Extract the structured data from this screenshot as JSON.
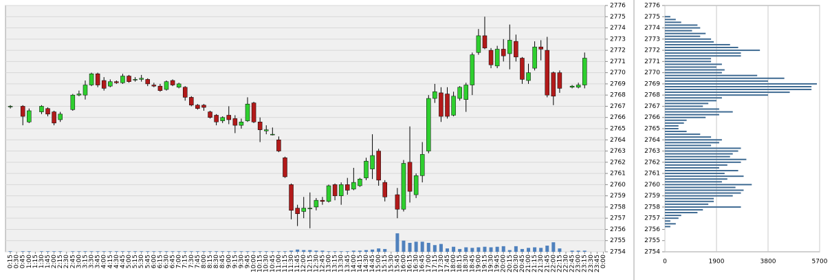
{
  "chart_data": [
    {
      "type": "candlestick",
      "categories": [
        "0:15",
        "0:30",
        "0:45",
        "1:00",
        "1:15",
        "1:30",
        "1:45",
        "2:00",
        "2:15",
        "2:30",
        "2:45",
        "3:00",
        "3:15",
        "3:30",
        "3:45",
        "4:00",
        "4:15",
        "4:30",
        "4:45",
        "5:00",
        "5:15",
        "5:30",
        "5:45",
        "6:00",
        "6:15",
        "6:30",
        "6:45",
        "7:00",
        "7:15",
        "7:30",
        "7:45",
        "8:00",
        "8:15",
        "8:30",
        "8:45",
        "9:00",
        "9:15",
        "9:30",
        "9:45",
        "10:00",
        "10:15",
        "10:30",
        "10:45",
        "11:00",
        "11:15",
        "11:30",
        "11:45",
        "12:00",
        "12:15",
        "12:30",
        "12:45",
        "13:00",
        "13:15",
        "13:30",
        "13:45",
        "14:00",
        "14:15",
        "14:30",
        "14:45",
        "15:00",
        "15:15",
        "15:30",
        "15:45",
        "16:00",
        "16:15",
        "16:30",
        "16:45",
        "17:00",
        "17:15",
        "17:30",
        "17:45",
        "18:00",
        "18:15",
        "18:30",
        "18:45",
        "19:00",
        "19:15",
        "19:30",
        "19:45",
        "20:00",
        "20:15",
        "20:30",
        "20:45",
        "21:00",
        "21:15",
        "21:30",
        "21:45",
        "22:00",
        "22:15",
        "22:30",
        "22:45",
        "23:00",
        "23:15",
        "23:30",
        "23:45",
        "0:00"
      ],
      "open": [
        2767.0,
        null,
        2767.0,
        2765.6,
        null,
        2766.5,
        2766.8,
        2766.5,
        2765.8,
        null,
        2766.7,
        2768.0,
        2768.0,
        2768.9,
        2769.9,
        2769.3,
        2768.8,
        2769.2,
        2769.1,
        2769.7,
        2769.4,
        2769.4,
        2769.4,
        2768.9,
        2768.8,
        2768.5,
        2769.3,
        2768.7,
        2768.7,
        2767.8,
        2767.1,
        2767.1,
        2766.5,
        2766.2,
        2765.7,
        2766.2,
        2765.9,
        2765.3,
        2765.7,
        2767.3,
        2765.6,
        2764.8,
        2764.5,
        2764.0,
        2762.4,
        2760.0,
        2757.9,
        2757.6,
        2757.9,
        2758.0,
        2758.6,
        2758.5,
        2760.0,
        2759.0,
        2760.0,
        2759.6,
        2759.9,
        2760.6,
        2761.4,
        2763.0,
        2760.2,
        null,
        2759.1,
        2757.8,
        2762.0,
        2759.1,
        2760.8,
        2763.0,
        2767.7,
        2768.2,
        2768.1,
        2766.2,
        2767.7,
        2767.6,
        2768.9,
        2771.8,
        2773.3,
        2772.0,
        2770.6,
        2772.1,
        2771.7,
        2772.8,
        2771.3,
        2769.3,
        2770.4,
        2772.3,
        2772.0,
        2770.0,
        2770.0,
        null,
        2768.7,
        2768.7,
        2768.9,
        null,
        null,
        null
      ],
      "high": [
        2767.1,
        null,
        2767.1,
        2766.8,
        null,
        2767.1,
        2766.9,
        2766.6,
        2766.5,
        null,
        2768.1,
        2768.4,
        2769.3,
        2770.0,
        2770.0,
        2769.6,
        2769.4,
        2769.3,
        2769.9,
        2769.8,
        2769.6,
        2769.8,
        2769.5,
        2769.1,
        2769.0,
        2769.3,
        2769.4,
        2769.1,
        2768.8,
        2767.9,
        2767.2,
        2767.2,
        2766.6,
        2766.3,
        2766.1,
        2767.0,
        2766.2,
        2765.9,
        2767.8,
        2767.4,
        2766.0,
        2765.3,
        2765.1,
        2764.3,
        2762.5,
        2760.1,
        2758.2,
        2758.9,
        2759.3,
        2758.8,
        2758.9,
        2760.0,
        2760.1,
        2760.2,
        2760.6,
        2761.5,
        2760.6,
        2762.4,
        2764.5,
        2763.2,
        2760.4,
        null,
        2759.7,
        2762.2,
        2765.2,
        2761.0,
        2763.8,
        2768.0,
        2769.0,
        2768.7,
        2768.7,
        2768.3,
        2768.8,
        2769.1,
        2771.8,
        2773.9,
        2775.0,
        2772.2,
        2772.4,
        2773.0,
        2774.3,
        2773.4,
        2771.4,
        2770.8,
        2772.8,
        2772.9,
        2773.2,
        2770.1,
        2770.2,
        null,
        2768.9,
        2769.1,
        2771.8,
        null,
        null,
        null
      ],
      "low": [
        2766.8,
        null,
        2765.3,
        2765.5,
        null,
        2766.3,
        2766.1,
        2765.3,
        2765.6,
        null,
        2766.6,
        2767.9,
        2767.6,
        2768.8,
        2768.7,
        2768.4,
        2768.7,
        2769.0,
        2769.0,
        2769.1,
        2769.2,
        2769.2,
        2768.8,
        2768.7,
        2768.3,
        2768.4,
        2768.8,
        2768.6,
        2767.5,
        2767.0,
        2766.7,
        2766.6,
        2765.9,
        2765.3,
        2765.5,
        2765.4,
        2764.6,
        2765.0,
        2765.6,
        2765.5,
        2763.8,
        2764.5,
        2764.4,
        2762.9,
        2760.6,
        2756.9,
        2756.3,
        2757.0,
        2756.1,
        2757.7,
        2758.2,
        2758.4,
        2758.6,
        2758.2,
        2759.1,
        2759.5,
        2759.8,
        2760.4,
        2760.5,
        2759.9,
        2758.5,
        null,
        2757.0,
        2757.6,
        2758.4,
        2758.8,
        2760.2,
        2762.8,
        2767.3,
        2765.6,
        2765.9,
        2766.1,
        2767.5,
        2766.5,
        2768.0,
        2771.6,
        2772.1,
        2770.4,
        2770.4,
        2771.0,
        2770.3,
        2771.0,
        2769.0,
        2769.0,
        2770.2,
        2771.1,
        2767.8,
        2767.1,
        2768.2,
        null,
        2768.6,
        2768.6,
        2768.6,
        null,
        null,
        null
      ],
      "close": [
        2767.0,
        null,
        2766.1,
        2766.6,
        null,
        2767.0,
        2766.3,
        2765.5,
        2766.3,
        null,
        2768.0,
        2768.1,
        2768.9,
        2769.9,
        2768.9,
        2768.6,
        2769.2,
        2769.1,
        2769.7,
        2769.2,
        2769.4,
        2769.5,
        2769.0,
        2768.8,
        2768.4,
        2769.2,
        2768.9,
        2769.0,
        2767.8,
        2767.1,
        2766.8,
        2766.9,
        2766.0,
        2765.6,
        2766.0,
        2765.8,
        2765.3,
        2765.6,
        2767.2,
        2765.6,
        2764.9,
        2764.9,
        2764.5,
        2763.0,
        2760.7,
        2757.7,
        2757.4,
        2757.9,
        2757.9,
        2758.6,
        2758.5,
        2759.9,
        2759.0,
        2760.0,
        2759.5,
        2760.2,
        2760.5,
        2762.1,
        2762.6,
        2760.4,
        2758.9,
        null,
        2757.8,
        2761.9,
        2759.4,
        2760.8,
        2762.7,
        2767.7,
        2768.3,
        2766.1,
        2766.1,
        2767.9,
        2768.7,
        2768.9,
        2771.6,
        2773.3,
        2772.2,
        2770.7,
        2772.1,
        2771.5,
        2772.9,
        2771.4,
        2769.4,
        2770.0,
        2772.3,
        2772.1,
        2768.0,
        2767.9,
        2768.6,
        null,
        2768.8,
        2768.9,
        2771.3,
        null,
        null,
        null
      ],
      "volume": [
        0.05,
        null,
        0.05,
        0.05,
        null,
        0.05,
        0.05,
        0.05,
        0.05,
        null,
        0.05,
        0.05,
        0.05,
        0.05,
        0.05,
        0.05,
        0.05,
        0.05,
        0.05,
        0.05,
        0.05,
        0.05,
        0.05,
        0.05,
        0.05,
        0.05,
        0.05,
        0.05,
        0.05,
        0.05,
        0.05,
        0.05,
        0.05,
        0.05,
        0.05,
        0.05,
        0.05,
        0.05,
        0.05,
        0.05,
        0.05,
        0.05,
        0.05,
        0.05,
        0.05,
        0.1,
        0.2,
        0.15,
        0.15,
        0.1,
        0.1,
        0.05,
        0.05,
        0.05,
        0.05,
        0.1,
        0.1,
        0.15,
        0.2,
        0.3,
        0.25,
        null,
        1.65,
        1.0,
        0.8,
        0.9,
        0.9,
        0.8,
        0.6,
        0.7,
        0.3,
        0.45,
        0.25,
        0.4,
        0.35,
        0.4,
        0.45,
        0.4,
        0.45,
        0.5,
        0.15,
        0.5,
        0.25,
        0.35,
        0.4,
        0.35,
        0.55,
        0.85,
        0.3,
        null,
        0.1,
        0.1,
        0.1,
        null,
        null,
        null
      ],
      "up_color": "#2fcf2f",
      "down_color": "#b21a1a",
      "volume_color": "#4f81bd",
      "ylim": [
        2754,
        2776
      ],
      "yticks": [
        2754,
        2755,
        2756,
        2757,
        2758,
        2759,
        2760,
        2761,
        2762,
        2763,
        2764,
        2765,
        2766,
        2767,
        2768,
        2769,
        2770,
        2771,
        2772,
        2773,
        2774,
        2775,
        2776
      ],
      "grid": true
    },
    {
      "type": "bar",
      "orientation": "horizontal",
      "y": [
        2775.0,
        2774.75,
        2774.5,
        2774.25,
        2774.0,
        2773.75,
        2773.5,
        2773.25,
        2773.0,
        2772.75,
        2772.5,
        2772.25,
        2772.0,
        2771.75,
        2771.5,
        2771.25,
        2771.0,
        2770.75,
        2770.5,
        2770.25,
        2770.0,
        2769.75,
        2769.5,
        2769.25,
        2769.0,
        2768.75,
        2768.5,
        2768.25,
        2768.0,
        2767.75,
        2767.5,
        2767.25,
        2767.0,
        2766.75,
        2766.5,
        2766.25,
        2766.0,
        2765.75,
        2765.5,
        2765.25,
        2765.0,
        2764.75,
        2764.5,
        2764.25,
        2764.0,
        2763.75,
        2763.5,
        2763.25,
        2763.0,
        2762.75,
        2762.5,
        2762.25,
        2762.0,
        2761.75,
        2761.5,
        2761.25,
        2761.0,
        2760.75,
        2760.5,
        2760.25,
        2760.0,
        2759.75,
        2759.5,
        2759.25,
        2759.0,
        2758.75,
        2758.5,
        2758.25,
        2758.0,
        2757.75,
        2757.5,
        2757.25,
        2757.0,
        2756.75,
        2756.5,
        2756.25
      ],
      "values": [
        200,
        400,
        600,
        1200,
        1300,
        1000,
        1500,
        1300,
        1700,
        1800,
        2400,
        2700,
        3500,
        2800,
        2800,
        1700,
        1700,
        2100,
        1900,
        2200,
        2100,
        3400,
        4400,
        3800,
        5600,
        5400,
        5400,
        4600,
        3800,
        2100,
        1900,
        1600,
        1400,
        2000,
        2500,
        2000,
        1500,
        800,
        700,
        500,
        500,
        800,
        1300,
        1700,
        2100,
        2000,
        1700,
        2800,
        2700,
        2500,
        2400,
        3000,
        2800,
        2300,
        2000,
        2700,
        2200,
        2900,
        2300,
        2100,
        3200,
        2600,
        2900,
        2800,
        2500,
        1800,
        1800,
        1600,
        2800,
        1400,
        1200,
        600,
        500,
        200,
        400,
        200
      ],
      "color": "#3e6a92",
      "ylim": [
        2754,
        2776
      ],
      "yticks": [
        2754,
        2755,
        2756,
        2757,
        2758,
        2759,
        2760,
        2761,
        2762,
        2763,
        2764,
        2765,
        2766,
        2767,
        2768,
        2769,
        2770,
        2771,
        2772,
        2773,
        2774,
        2775,
        2776
      ],
      "xlim": [
        0,
        5700
      ],
      "xticks": [
        0,
        1900,
        3800,
        5700
      ],
      "grid": true
    }
  ]
}
